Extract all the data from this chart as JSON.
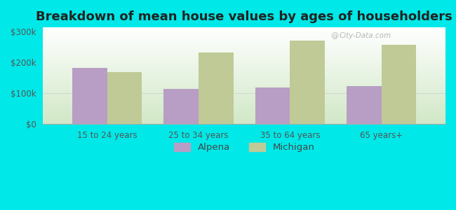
{
  "categories": [
    "15 to 24 years",
    "25 to 34 years",
    "35 to 64 years",
    "65 years+"
  ],
  "alpena_values": [
    183000,
    113000,
    118000,
    122000
  ],
  "michigan_values": [
    168000,
    232000,
    272000,
    257000
  ],
  "alpena_color": "#b89ec4",
  "michigan_color": "#bfca96",
  "title": "Breakdown of mean house values by ages of householders",
  "title_fontsize": 13,
  "title_fontweight": "bold",
  "ylabel_ticks": [
    0,
    100000,
    200000,
    300000
  ],
  "ylabel_labels": [
    "$0",
    "$100k",
    "$200k",
    "$300k"
  ],
  "ylim": [
    0,
    315000
  ],
  "bar_width": 0.38,
  "outer_background": "#00e8e8",
  "legend_labels": [
    "Alpena",
    "Michigan"
  ],
  "watermark_text": "City-Data.com"
}
